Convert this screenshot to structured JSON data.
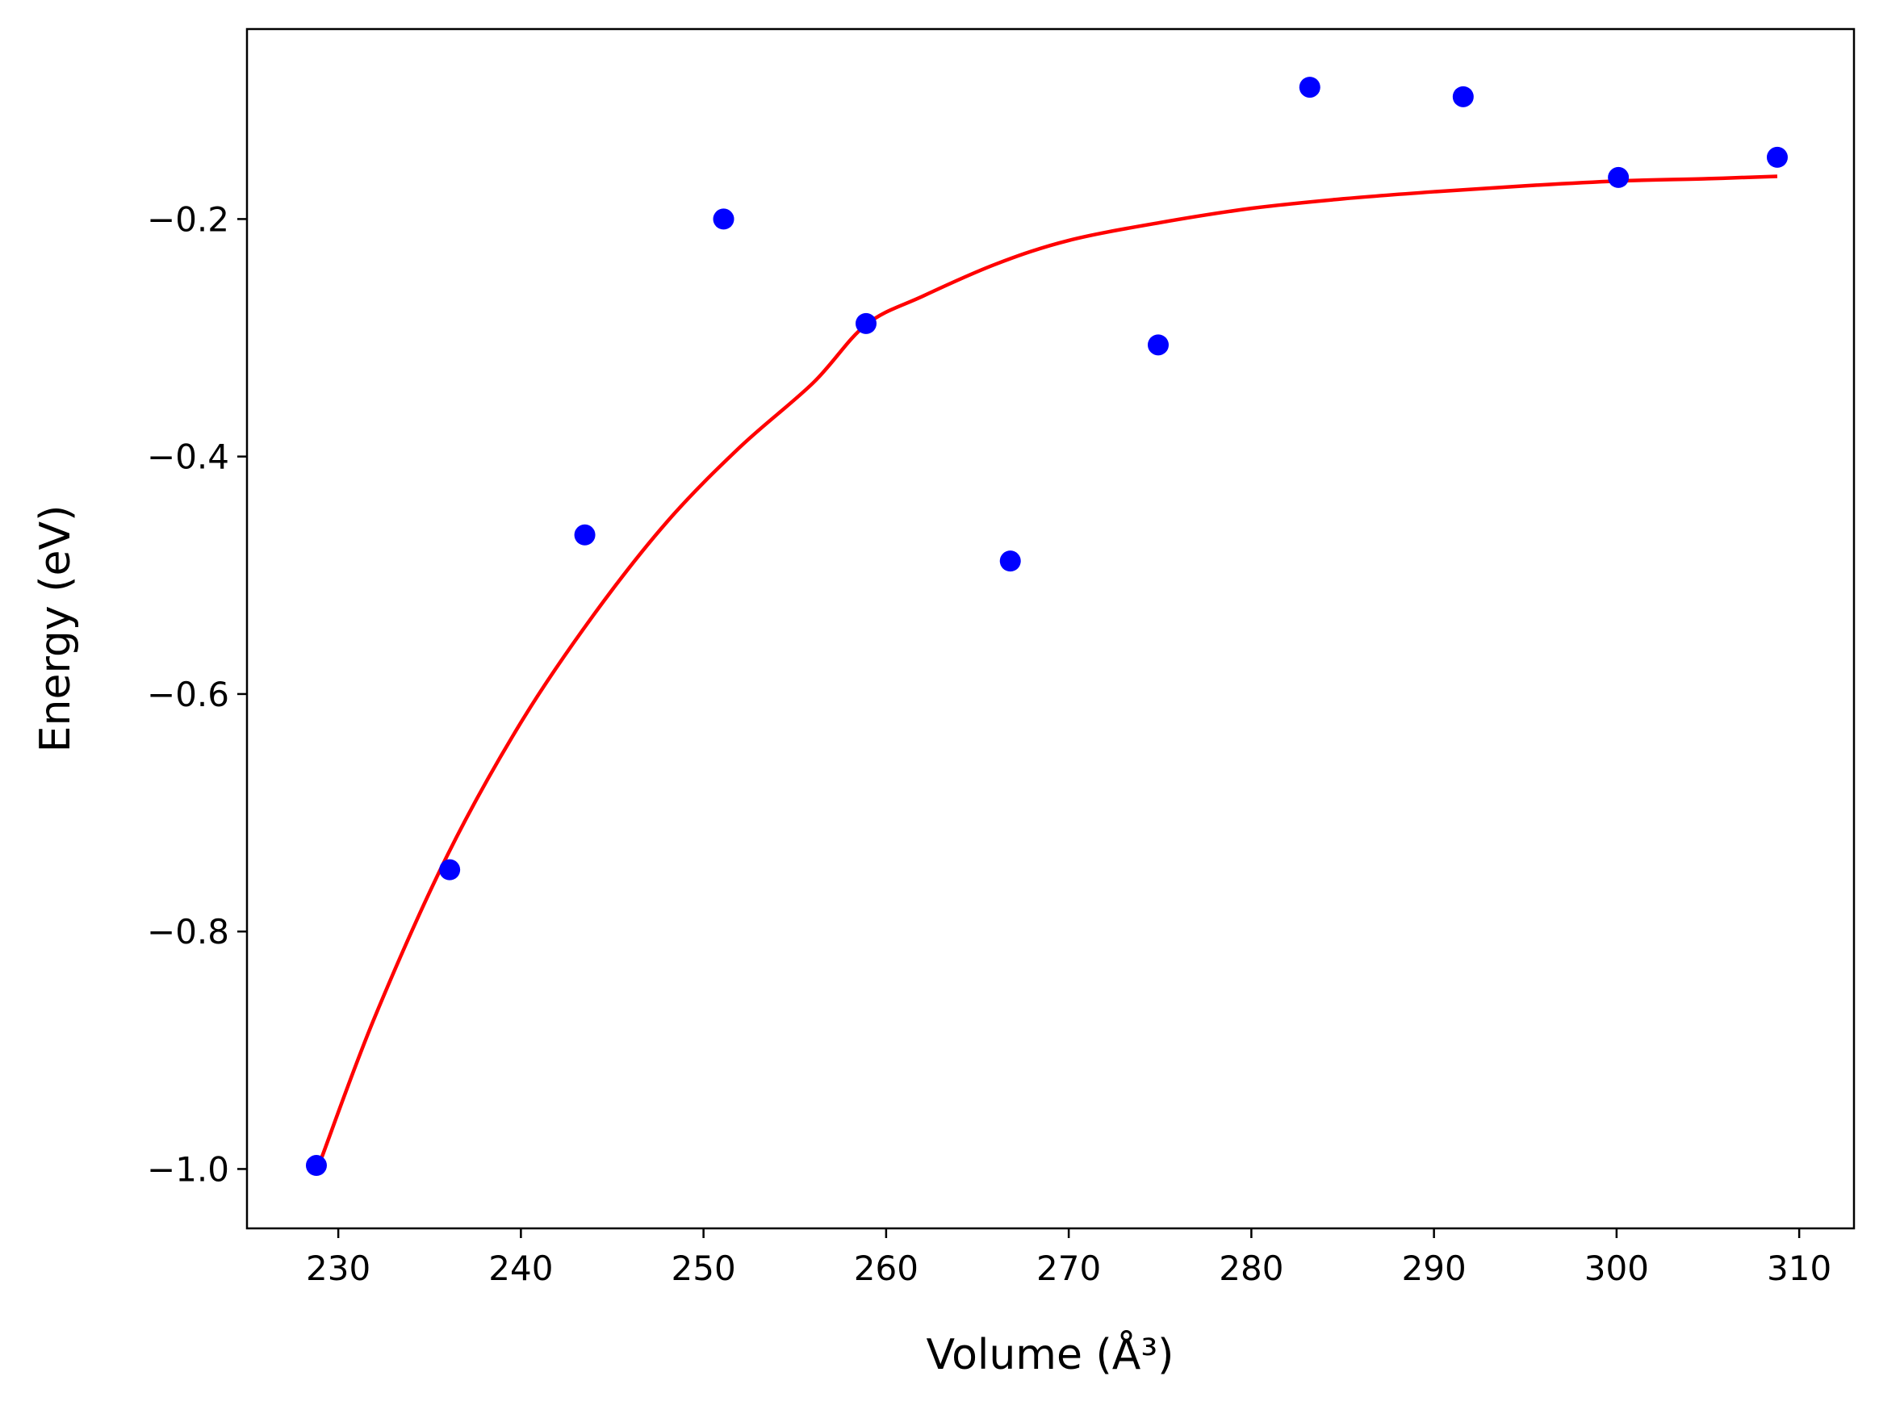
{
  "chart_data": {
    "type": "scatter",
    "xlabel": "Volume (Å³)",
    "ylabel": "Energy (eV)",
    "xlim": [
      225,
      313
    ],
    "ylim": [
      -1.05,
      -0.04
    ],
    "xticks": [
      230,
      240,
      250,
      260,
      270,
      280,
      290,
      300,
      310
    ],
    "yticks": [
      -1.0,
      -0.8,
      -0.6,
      -0.4,
      -0.2
    ],
    "xtick_labels": [
      "230",
      "240",
      "250",
      "260",
      "270",
      "280",
      "290",
      "300",
      "310"
    ],
    "ytick_labels": [
      "−1.0",
      "−0.8",
      "−0.6",
      "−0.4",
      "−0.2"
    ],
    "grid": false,
    "legend": "none",
    "series": [
      {
        "kind": "points",
        "color": "#0000ff",
        "x": [
          228.8,
          236.1,
          243.5,
          251.1,
          258.9,
          266.8,
          274.9,
          283.2,
          291.6,
          300.1,
          308.8
        ],
        "y": [
          -0.997,
          -0.748,
          -0.466,
          -0.2,
          -0.288,
          -0.488,
          -0.306,
          -0.089,
          -0.097,
          -0.165,
          -0.148
        ]
      },
      {
        "kind": "fit-line",
        "color": "#ff0000",
        "x": [
          229.1,
          232,
          236,
          240,
          244,
          248,
          252,
          256,
          258.9,
          262,
          266,
          270,
          275,
          280,
          285,
          290,
          295,
          300,
          305,
          308.8
        ],
        "y": [
          -0.99,
          -0.872,
          -0.735,
          -0.624,
          -0.533,
          -0.455,
          -0.392,
          -0.338,
          -0.289,
          -0.265,
          -0.238,
          -0.218,
          -0.203,
          -0.191,
          -0.183,
          -0.177,
          -0.172,
          -0.168,
          -0.166,
          -0.164
        ]
      }
    ]
  }
}
